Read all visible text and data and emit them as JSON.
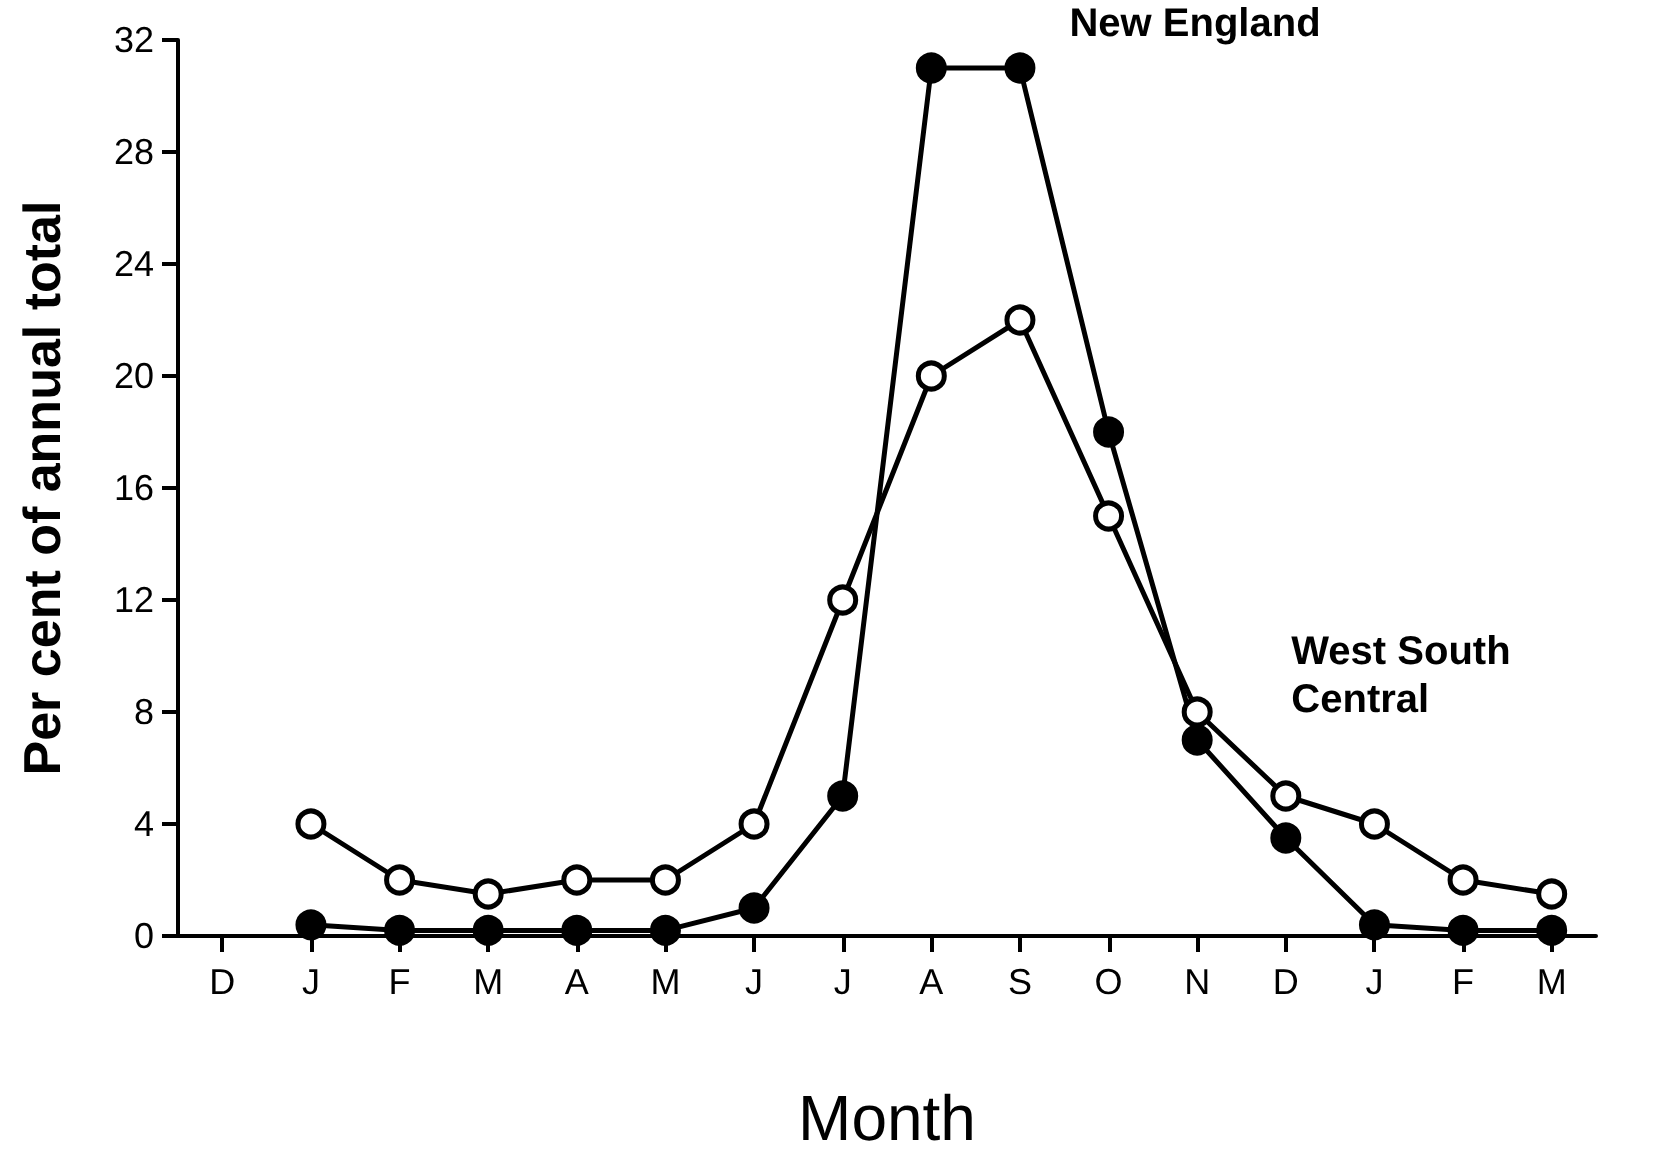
{
  "chart_data": {
    "type": "line",
    "xlabel": "Month",
    "ylabel": "Per cent of annual total",
    "categories": [
      "D",
      "J",
      "F",
      "M",
      "A",
      "M",
      "J",
      "J",
      "A",
      "S",
      "O",
      "N",
      "D",
      "J",
      "F",
      "M"
    ],
    "series": [
      {
        "name": "New England",
        "color": "#000000",
        "values": [
          null,
          0.4,
          0.2,
          0.2,
          0.2,
          0.2,
          1,
          5,
          31,
          31,
          18,
          7,
          3.5,
          0.4,
          0.2,
          0.2
        ]
      },
      {
        "name": "West South Central",
        "color": "#000000",
        "values": [
          null,
          4,
          2,
          1.5,
          2,
          2,
          4,
          12,
          20,
          22,
          15,
          8,
          5,
          4,
          2,
          1.5
        ]
      }
    ],
    "ylim": [
      0,
      32
    ],
    "yticks": [
      0,
      4,
      8,
      12,
      16,
      20,
      24,
      28,
      32
    ],
    "grid": false,
    "legend": false,
    "marker": "circle",
    "line_style": "solid"
  }
}
